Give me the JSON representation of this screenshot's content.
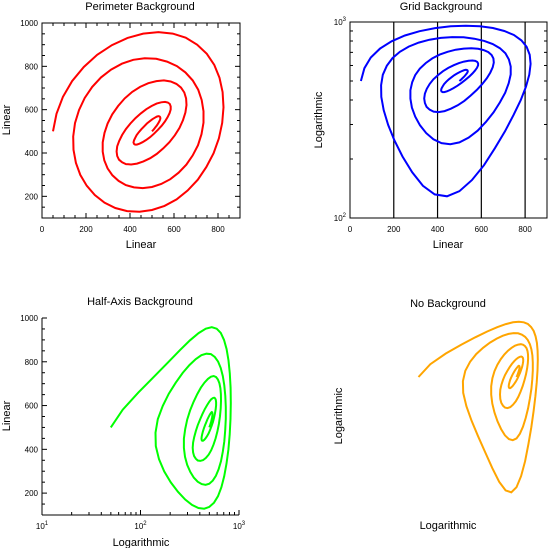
{
  "chart_data": [
    {
      "type": "line",
      "title": "Perimeter Background",
      "xlabel": "Linear",
      "ylabel": "Linear",
      "xscale": "linear",
      "yscale": "linear",
      "xlim": [
        0,
        900
      ],
      "ylim": [
        100,
        1000
      ],
      "xticks": [
        0,
        200,
        400,
        600,
        800
      ],
      "yticks": [
        200,
        400,
        600,
        800,
        1000
      ],
      "background": "perimeter",
      "color": "#ff0000",
      "series": [
        {
          "x": [
            50,
            66,
            95,
            137,
            190,
            251,
            318,
            389,
            460,
            529,
            594,
            653,
            705,
            749,
            783,
            807,
            821,
            825,
            819,
            804,
            780,
            747,
            708,
            662,
            612,
            557,
            500,
            443,
            387,
            333,
            284,
            240,
            203,
            174,
            154,
            143,
            142,
            150,
            168,
            194,
            228,
            268,
            314,
            363,
            415,
            467,
            519,
            568,
            613,
            652,
            685,
            710,
            726,
            734,
            734,
            725,
            709,
            685,
            656,
            621,
            583,
            542,
            500,
            458,
            418,
            381,
            348,
            320,
            298,
            283,
            276,
            276,
            284,
            298,
            319,
            346,
            376,
            410,
            446,
            483,
            520,
            554,
            585,
            611,
            632,
            647,
            655,
            657,
            652,
            641,
            625,
            604,
            579,
            551,
            522,
            492,
            461,
            432,
            405,
            382,
            364,
            350,
            342,
            339,
            342,
            351,
            364,
            381,
            402,
            425,
            449,
            474,
            498,
            521,
            542,
            559,
            572,
            581,
            585,
            585,
            580,
            571,
            559,
            544,
            527,
            509,
            491,
            473,
            457,
            443,
            431,
            423,
            418,
            416,
            418,
            423,
            430,
            440,
            452,
            464,
            477,
            490,
            502,
            513,
            522,
            529,
            534,
            537,
            538,
            537,
            533,
            528,
            522,
            515,
            508,
            500
          ],
          "y": [
            500,
            581,
            659,
            732,
            797,
            853,
            898,
            931,
            951,
            958,
            951,
            932,
            900,
            858,
            806,
            747,
            681,
            611,
            539,
            468,
            399,
            335,
            277,
            227,
            186,
            156,
            137,
            129,
            132,
            146,
            171,
            206,
            249,
            299,
            355,
            415,
            476,
            538,
            598,
            654,
            705,
            749,
            785,
            812,
            830,
            837,
            835,
            822,
            801,
            772,
            735,
            692,
            644,
            593,
            540,
            487,
            436,
            389,
            346,
            309,
            279,
            257,
            243,
            238,
            241,
            252,
            271,
            297,
            329,
            366,
            406,
            449,
            493,
            536,
            578,
            617,
            652,
            682,
            705,
            722,
            732,
            735,
            730,
            719,
            702,
            679,
            652,
            621,
            587,
            552,
            516,
            482,
            450,
            421,
            396,
            376,
            361,
            351,
            347,
            349,
            357,
            369,
            386,
            407,
            431,
            456,
            483,
            510,
            536,
            561,
            583,
            602,
            617,
            628,
            634,
            636,
            633,
            626,
            615,
            601,
            584,
            565,
            546,
            526,
            507,
            489,
            473,
            460,
            450,
            443,
            439,
            439,
            442,
            449,
            458,
            469,
            482,
            496,
            510,
            523,
            536,
            547,
            556,
            563,
            568,
            570,
            569,
            566,
            561,
            554,
            546,
            537,
            527,
            518,
            509,
            500
          ]
        }
      ]
    },
    {
      "type": "line",
      "title": "Grid Background",
      "xlabel": "Linear",
      "ylabel": "Logarithmic",
      "xscale": "linear",
      "yscale": "log",
      "xlim": [
        0,
        900
      ],
      "ylim": [
        100,
        1000
      ],
      "xticks": [
        0,
        200,
        400,
        600,
        800
      ],
      "yticks": [
        100,
        1000
      ],
      "ytick_labels": [
        {
          "base": "10",
          "exp": "2"
        },
        {
          "base": "10",
          "exp": "3"
        }
      ],
      "background": "vertical grid lines at x = 200, 400, 600, 800",
      "color": "#0000ff",
      "series": [
        {
          "same_as": 0
        }
      ]
    },
    {
      "type": "line",
      "title": "Half-Axis Background",
      "xlabel": "Logarithmic",
      "ylabel": "Linear",
      "xscale": "log",
      "yscale": "linear",
      "xlim": [
        10,
        1000
      ],
      "ylim": [
        100,
        1000
      ],
      "xticks": [
        10,
        100,
        1000
      ],
      "xtick_labels": [
        {
          "base": "10",
          "exp": "1"
        },
        {
          "base": "10",
          "exp": "2"
        },
        {
          "base": "10",
          "exp": "3"
        }
      ],
      "yticks": [
        200,
        400,
        600,
        800,
        1000
      ],
      "background": "half-axis (left and bottom only)",
      "color": "#00ff00",
      "series": [
        {
          "same_as": 0
        }
      ]
    },
    {
      "type": "line",
      "title": "No Background",
      "xlabel": "Logarithmic",
      "ylabel": "Logarithmic",
      "xscale": "log",
      "yscale": "log",
      "xlim": [
        10,
        1000
      ],
      "ylim": [
        100,
        1000
      ],
      "background": "none",
      "color": "#ffa500",
      "series": [
        {
          "same_as": 0
        }
      ]
    }
  ]
}
